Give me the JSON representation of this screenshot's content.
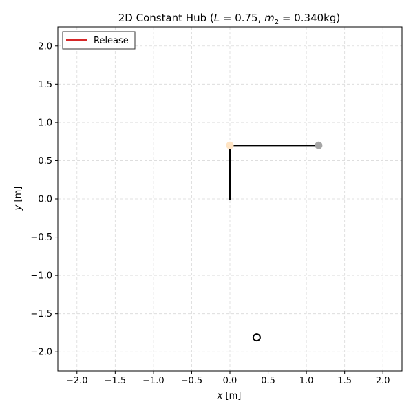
{
  "chart_data": {
    "type": "scatter",
    "title_prefix": "2D Constant Hub (",
    "title_L_var": "L",
    "title_L_value": " = 0.75, ",
    "title_m_var": "m",
    "title_m_sub": "2",
    "title_m_value": " = 0.340kg)",
    "xlabel_var": "x",
    "xlabel_unit": " [m]",
    "ylabel_var": "y",
    "ylabel_unit": " [m]",
    "xlim": [
      -2.25,
      2.25
    ],
    "ylim": [
      -2.25,
      2.25
    ],
    "xticks": [
      -2.0,
      -1.5,
      -1.0,
      -0.5,
      0.0,
      0.5,
      1.0,
      1.5,
      2.0
    ],
    "yticks": [
      -2.0,
      -1.5,
      -1.0,
      -0.5,
      0.0,
      0.5,
      1.0,
      1.5,
      2.0
    ],
    "xtick_labels": [
      "−2.0",
      "−1.5",
      "−1.0",
      "−0.5",
      "0.0",
      "0.5",
      "1.0",
      "1.5",
      "2.0"
    ],
    "ytick_labels": [
      "−2.0",
      "−1.5",
      "−1.0",
      "−0.5",
      "0.0",
      "0.5",
      "1.0",
      "1.5",
      "2.0"
    ],
    "grid": true,
    "legend": {
      "placement": "top-left",
      "entries": [
        {
          "label": "Release",
          "color": "#d62728"
        }
      ]
    },
    "segments": [
      {
        "x": [
          0.0,
          0.0
        ],
        "y": [
          0.0,
          0.7
        ],
        "color": "#000000"
      },
      {
        "x": [
          0.0,
          1.16
        ],
        "y": [
          0.7,
          0.7
        ],
        "color": "#000000"
      }
    ],
    "points": [
      {
        "x": 0.0,
        "y": 0.0,
        "color": "#000000",
        "style": "dot"
      },
      {
        "x": 0.0,
        "y": 0.7,
        "color": "#ffe4c4",
        "style": "filled"
      },
      {
        "x": 1.16,
        "y": 0.7,
        "color": "#a6a6a6",
        "style": "filled"
      },
      {
        "x": 0.35,
        "y": -1.81,
        "color": "#000000",
        "style": "hollow"
      }
    ]
  }
}
